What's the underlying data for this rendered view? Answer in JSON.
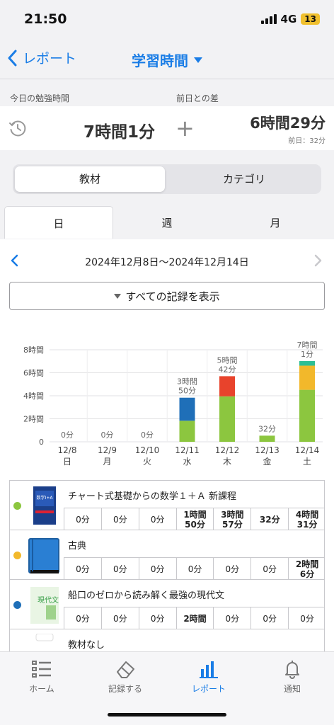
{
  "status": {
    "time": "21:50",
    "network": "4G",
    "battery": "13"
  },
  "nav": {
    "back_label": "レポート",
    "title": "学習時間"
  },
  "summary": {
    "today_label": "今日の勉強時間",
    "diff_label": "前日との差",
    "today_value": "7時間1分",
    "plus": "+",
    "diff_value": "6時間29分",
    "prev_day": "前日：32分"
  },
  "segment": {
    "active": "教材",
    "inactive": "カテゴリ"
  },
  "tabs": [
    "日",
    "週",
    "月"
  ],
  "week": {
    "label": "2024年12月8日〜2024年12月14日"
  },
  "show_all": "すべての記録を表示",
  "chart_data": {
    "type": "bar",
    "stacked": true,
    "categories": [
      "12/8",
      "12/9",
      "12/10",
      "12/11",
      "12/12",
      "12/13",
      "12/14"
    ],
    "weekdays": [
      "日",
      "月",
      "火",
      "水",
      "木",
      "金",
      "土"
    ],
    "yticks": [
      "0",
      "2時間",
      "4時間",
      "6時間",
      "8時間"
    ],
    "ylim": [
      0,
      8
    ],
    "grid": true,
    "totals": [
      [
        "0分"
      ],
      [
        "0分"
      ],
      [
        "0分"
      ],
      [
        "3時間",
        "50分"
      ],
      [
        "5時間",
        "42分"
      ],
      [
        "32分"
      ],
      [
        "7時間",
        "1分"
      ]
    ],
    "series": [
      {
        "color": "#8cc63f",
        "values": [
          0,
          0,
          0,
          1.833,
          3.95,
          0.533,
          4.517
        ]
      },
      {
        "color": "#f2b82b",
        "values": [
          0,
          0,
          0,
          0,
          0,
          0,
          2.1
        ]
      },
      {
        "color": "#1f6fb8",
        "values": [
          0,
          0,
          0,
          2.0,
          0,
          0,
          0
        ]
      },
      {
        "color": "#e8432c",
        "values": [
          0,
          0,
          0,
          0,
          1.75,
          0,
          0
        ]
      },
      {
        "color": "#2dbf95",
        "values": [
          0,
          0,
          0,
          0,
          0,
          0,
          0.4
        ]
      }
    ]
  },
  "books": [
    {
      "title": "チャート式基礎からの数学１＋Ａ 新課程",
      "dot_color": "#8cc63f",
      "cover_text": "数学I+A",
      "cells": [
        [
          "0分"
        ],
        [
          "0分"
        ],
        [
          "0分"
        ],
        [
          "1時間",
          "50分"
        ],
        [
          "3時間",
          "57分"
        ],
        [
          "32分"
        ],
        [
          "4時間",
          "31分"
        ]
      ]
    },
    {
      "title": "古典",
      "dot_color": "#f2b82b",
      "cells": [
        [
          "0分"
        ],
        [
          "0分"
        ],
        [
          "0分"
        ],
        [
          "0分"
        ],
        [
          "0分"
        ],
        [
          "0分"
        ],
        [
          "2時間",
          "6分"
        ]
      ]
    },
    {
      "title": "船口のゼロから読み解く最強の現代文",
      "dot_color": "#1f6fb8",
      "cover_text": "現代文",
      "cells": [
        [
          "0分"
        ],
        [
          "0分"
        ],
        [
          "0分"
        ],
        [
          "2時間"
        ],
        [
          "0分"
        ],
        [
          "0分"
        ],
        [
          "0分"
        ]
      ]
    },
    {
      "title": "教材なし"
    }
  ],
  "bottom_nav": {
    "home": "ホーム",
    "record": "記録する",
    "report": "レポート",
    "notify": "通知"
  }
}
